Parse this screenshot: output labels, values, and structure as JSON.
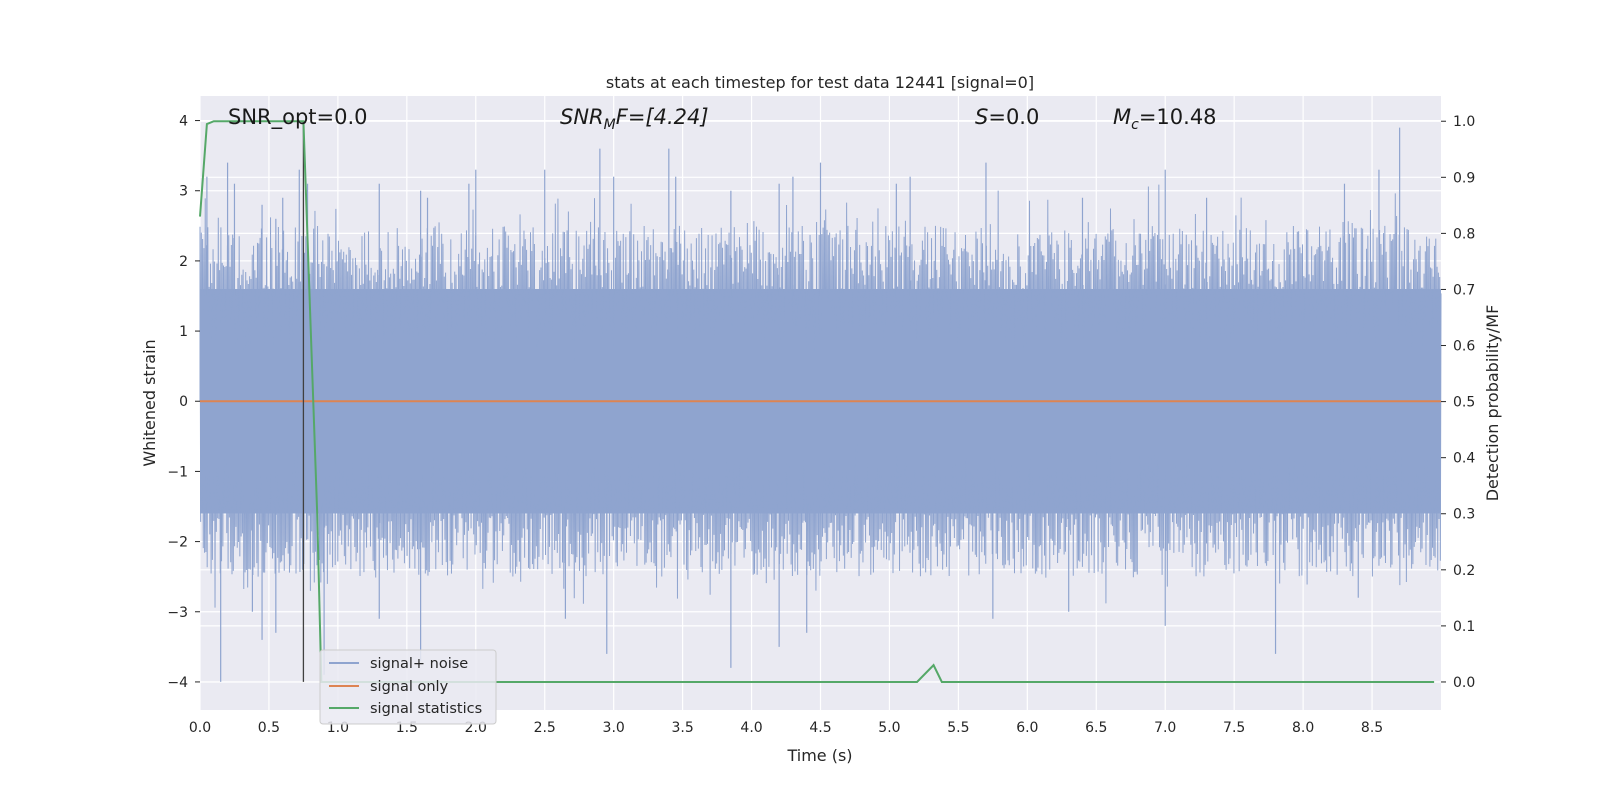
{
  "chart_data": {
    "type": "line",
    "title": "stats at each timestep for test data 12441 [signal=0]",
    "xlabel": "Time (s)",
    "ylabel_left": "Whitened strain",
    "ylabel_right": "Detection probability/MF",
    "xlim": [
      0,
      9.0
    ],
    "ylim_left": [
      -4.4,
      4.35
    ],
    "ylim_right": [
      -0.05,
      1.045
    ],
    "x_ticks": [
      "0.0",
      "0.5",
      "1.0",
      "1.5",
      "2.0",
      "2.5",
      "3.0",
      "3.5",
      "4.0",
      "4.5",
      "5.0",
      "5.5",
      "6.0",
      "6.5",
      "7.0",
      "7.5",
      "8.0",
      "8.5"
    ],
    "y_ticks_left": [
      "−4",
      "−3",
      "−2",
      "−1",
      "0",
      "1",
      "2",
      "3",
      "4"
    ],
    "y_ticks_right": [
      "0.0",
      "0.1",
      "0.2",
      "0.3",
      "0.4",
      "0.5",
      "0.6",
      "0.7",
      "0.8",
      "0.9",
      "1.0"
    ],
    "grid": true,
    "legend_position": "lower-left",
    "annotations": {
      "snr_opt": "SNR_opt=0.0",
      "snr_mf_main": "SNR",
      "snr_mf_sub": "M",
      "snr_mf_rest": "F=[4.24]",
      "s_main": "S",
      "s_rest": "=0.0",
      "mc_main": "M",
      "mc_sub": "c",
      "mc_rest": "=10.48"
    },
    "series": [
      {
        "name": "signal+ noise",
        "color": "#8fa4cf",
        "axis": "left",
        "description_of_values": "dense whitened noise between about -3.8 and 3.9",
        "band_core": [
          -1.6,
          1.6
        ],
        "peaks_x": [
          0.05,
          0.2,
          0.25,
          0.45,
          0.55,
          0.6,
          0.72,
          0.78,
          1.3,
          1.6,
          1.65,
          1.95,
          2.0,
          2.5,
          2.9,
          3.0,
          3.4,
          3.45,
          3.85,
          4.2,
          4.3,
          4.5,
          5.05,
          5.15,
          5.7,
          6.4,
          7.0,
          7.3,
          8.3,
          8.55,
          8.7
        ],
        "peaks_y": [
          3.2,
          3.4,
          3.1,
          2.8,
          2.6,
          2.9,
          3.3,
          3.1,
          3.1,
          3.0,
          2.9,
          3.1,
          3.3,
          3.3,
          3.6,
          3.2,
          3.6,
          3.2,
          3.0,
          3.1,
          3.2,
          3.4,
          3.1,
          3.2,
          3.4,
          2.9,
          3.3,
          2.9,
          3.1,
          3.3,
          3.9
        ],
        "troughs_x": [
          0.15,
          0.38,
          0.45,
          0.55,
          0.9,
          1.3,
          1.6,
          2.65,
          2.95,
          3.85,
          4.2,
          4.4,
          5.75,
          6.3,
          7.0,
          7.8,
          8.4
        ],
        "troughs_y": [
          -4.0,
          -3.0,
          -3.4,
          -3.3,
          -3.9,
          -3.1,
          -3.7,
          -3.1,
          -3.6,
          -3.8,
          -3.5,
          -3.3,
          -3.1,
          -3.0,
          -3.2,
          -3.6,
          -2.8
        ]
      },
      {
        "name": "signal only",
        "color": "#dd8452",
        "axis": "left",
        "x": [
          0,
          9.0
        ],
        "y": [
          0,
          0
        ]
      },
      {
        "name": "signal statistics",
        "color": "#55a868",
        "axis": "right",
        "x": [
          0,
          0.05,
          0.1,
          0.7,
          0.75,
          0.85,
          0.88,
          5.0,
          5.2,
          5.32,
          5.38,
          8.95
        ],
        "y": [
          0.83,
          0.995,
          1.0,
          1.0,
          1.0,
          0.3,
          0.0,
          0.0,
          0.0,
          0.03,
          0.0,
          0.0
        ]
      }
    ],
    "marker_line": {
      "x": 0.75,
      "y_range": [
        -4.0,
        4.0
      ],
      "color": "#404040"
    }
  }
}
